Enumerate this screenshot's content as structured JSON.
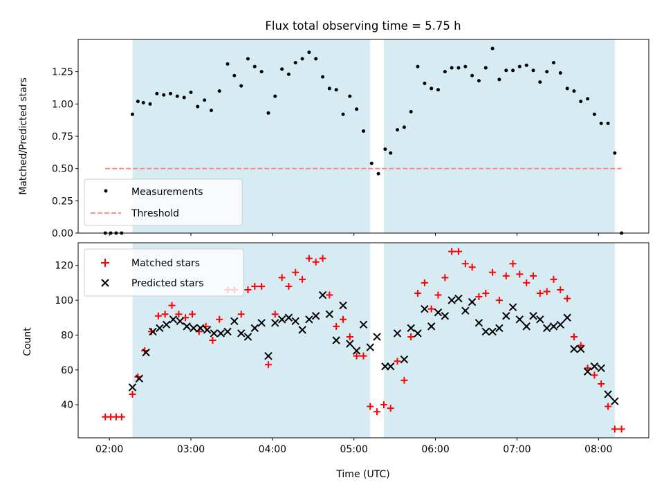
{
  "chart_data": [
    {
      "type": "scatter",
      "title": "Flux total observing time = 5.75 h",
      "ylabel": "Matched/Predicted stars",
      "xlabel": "",
      "x_unit": "hours UTC",
      "xlim": [
        1.617,
        8.617
      ],
      "ylim": [
        0,
        1.5
      ],
      "yticks": [
        "0.00",
        "0.25",
        "0.50",
        "0.75",
        "1.00",
        "1.25"
      ],
      "ytick_values": [
        0,
        0.25,
        0.5,
        0.75,
        1.0,
        1.25
      ],
      "shaded_intervals": [
        [
          2.283,
          5.2
        ],
        [
          5.367,
          8.2
        ]
      ],
      "legend_position": "lower-left",
      "grid": false,
      "series": [
        {
          "name": "Measurements",
          "marker": "dot",
          "color": "#000000",
          "x": [
            1.95,
            2.017,
            2.083,
            2.15,
            2.283,
            2.35,
            2.417,
            2.5,
            2.583,
            2.667,
            2.75,
            2.833,
            2.917,
            3.0,
            3.083,
            3.167,
            3.25,
            3.35,
            3.45,
            3.533,
            3.617,
            3.7,
            3.783,
            3.867,
            3.95,
            4.033,
            4.117,
            4.2,
            4.283,
            4.367,
            4.45,
            4.533,
            4.617,
            4.7,
            4.783,
            4.867,
            4.95,
            5.033,
            5.117,
            5.217,
            5.3,
            5.383,
            5.45,
            5.533,
            5.617,
            5.7,
            5.783,
            5.867,
            5.95,
            6.033,
            6.117,
            6.2,
            6.283,
            6.367,
            6.45,
            6.533,
            6.617,
            6.7,
            6.783,
            6.867,
            6.95,
            7.033,
            7.117,
            7.2,
            7.283,
            7.367,
            7.45,
            7.533,
            7.617,
            7.7,
            7.783,
            7.867,
            7.95,
            8.033,
            8.117,
            8.2,
            8.283
          ],
          "y": [
            0,
            0,
            0,
            0,
            0.92,
            1.02,
            1.01,
            1.0,
            1.08,
            1.07,
            1.08,
            1.06,
            1.05,
            1.09,
            0.98,
            1.03,
            0.95,
            1.1,
            1.31,
            1.22,
            1.14,
            1.35,
            1.29,
            1.25,
            0.93,
            1.06,
            1.27,
            1.23,
            1.32,
            1.35,
            1.4,
            1.35,
            1.21,
            1.12,
            1.11,
            0.92,
            1.06,
            0.96,
            0.79,
            0.54,
            0.46,
            0.65,
            0.62,
            0.8,
            0.82,
            0.94,
            1.29,
            1.16,
            1.12,
            1.11,
            1.25,
            1.28,
            1.28,
            1.29,
            1.22,
            1.18,
            1.28,
            1.43,
            1.19,
            1.26,
            1.26,
            1.29,
            1.3,
            1.26,
            1.17,
            1.25,
            1.32,
            1.24,
            1.12,
            1.1,
            1.02,
            1.04,
            0.92,
            0.85,
            0.85,
            0.62,
            0
          ]
        },
        {
          "name": "Threshold",
          "marker": "dashed-line",
          "color": "#ff7f7f",
          "x": [
            1.95,
            8.283
          ],
          "y": [
            0.5,
            0.5
          ]
        }
      ]
    },
    {
      "type": "scatter",
      "title": "",
      "ylabel": "Count",
      "xlabel": "Time (UTC)",
      "x_unit": "hours UTC",
      "xlim": [
        1.617,
        8.617
      ],
      "ylim": [
        21,
        133
      ],
      "xticks": [
        "02:00",
        "03:00",
        "04:00",
        "05:00",
        "06:00",
        "07:00",
        "08:00"
      ],
      "xtick_values": [
        2,
        3,
        4,
        5,
        6,
        7,
        8
      ],
      "yticks": [
        "40",
        "60",
        "80",
        "100",
        "120"
      ],
      "ytick_values": [
        40,
        60,
        80,
        100,
        120
      ],
      "shaded_intervals": [
        [
          2.283,
          5.2
        ],
        [
          5.367,
          8.2
        ]
      ],
      "legend_position": "upper-left",
      "grid": false,
      "series": [
        {
          "name": "Matched stars",
          "marker": "plus",
          "color": "#ff0000",
          "x": [
            1.95,
            2.017,
            2.083,
            2.15,
            2.283,
            2.35,
            2.433,
            2.517,
            2.6,
            2.683,
            2.767,
            2.85,
            2.933,
            3.017,
            3.1,
            3.183,
            3.267,
            3.35,
            3.45,
            3.533,
            3.617,
            3.7,
            3.783,
            3.867,
            3.95,
            4.033,
            4.117,
            4.2,
            4.283,
            4.367,
            4.45,
            4.533,
            4.617,
            4.7,
            4.783,
            4.867,
            4.95,
            5.033,
            5.117,
            5.2,
            5.283,
            5.367,
            5.45,
            5.533,
            5.617,
            5.7,
            5.783,
            5.867,
            5.95,
            6.033,
            6.117,
            6.2,
            6.283,
            6.367,
            6.45,
            6.533,
            6.617,
            6.7,
            6.783,
            6.867,
            6.95,
            7.033,
            7.117,
            7.2,
            7.283,
            7.367,
            7.45,
            7.533,
            7.617,
            7.7,
            7.783,
            7.867,
            7.95,
            8.033,
            8.117,
            8.2,
            8.283
          ],
          "y": [
            33,
            33,
            33,
            33,
            46,
            56,
            71,
            82,
            91,
            92,
            97,
            92,
            90,
            92,
            82,
            85,
            77,
            89,
            106,
            106,
            92,
            106,
            108,
            108,
            63,
            92,
            113,
            108,
            116,
            112,
            124,
            122,
            124,
            103,
            85,
            89,
            79,
            68,
            68,
            39,
            36,
            40,
            38,
            65,
            54,
            79,
            104,
            110,
            95,
            103,
            113,
            128,
            128,
            121,
            119,
            102,
            104,
            116,
            100,
            114,
            121,
            115,
            110,
            114,
            104,
            105,
            112,
            106,
            101,
            79,
            74,
            61,
            57,
            52,
            39,
            26,
            26
          ]
        },
        {
          "name": "Predicted stars",
          "marker": "x",
          "color": "#000000",
          "x": [
            2.283,
            2.367,
            2.45,
            2.533,
            2.617,
            2.7,
            2.783,
            2.867,
            2.95,
            3.033,
            3.117,
            3.2,
            3.283,
            3.367,
            3.45,
            3.533,
            3.617,
            3.7,
            3.783,
            3.867,
            3.95,
            4.033,
            4.117,
            4.2,
            4.283,
            4.367,
            4.45,
            4.533,
            4.617,
            4.7,
            4.783,
            4.867,
            4.95,
            5.033,
            5.117,
            5.2,
            5.283,
            5.383,
            5.45,
            5.533,
            5.617,
            5.7,
            5.783,
            5.867,
            5.95,
            6.033,
            6.117,
            6.2,
            6.283,
            6.367,
            6.45,
            6.533,
            6.617,
            6.7,
            6.783,
            6.867,
            6.95,
            7.033,
            7.117,
            7.2,
            7.283,
            7.367,
            7.45,
            7.533,
            7.617,
            7.7,
            7.783,
            7.867,
            7.95,
            8.033,
            8.117,
            8.2
          ],
          "y": [
            50,
            55,
            70,
            82,
            84,
            86,
            89,
            88,
            85,
            84,
            84,
            83,
            81,
            81,
            82,
            88,
            81,
            79,
            84,
            87,
            68,
            87,
            89,
            90,
            88,
            83,
            89,
            91,
            103,
            92,
            77,
            97,
            75,
            71,
            86,
            73,
            79,
            62,
            62,
            81,
            66,
            84,
            81,
            95,
            85,
            93,
            91,
            100,
            101,
            94,
            99,
            87,
            82,
            82,
            84,
            91,
            96,
            89,
            85,
            91,
            89,
            84,
            85,
            86,
            90,
            72,
            72,
            59,
            62,
            61,
            46,
            42
          ]
        }
      ]
    }
  ]
}
